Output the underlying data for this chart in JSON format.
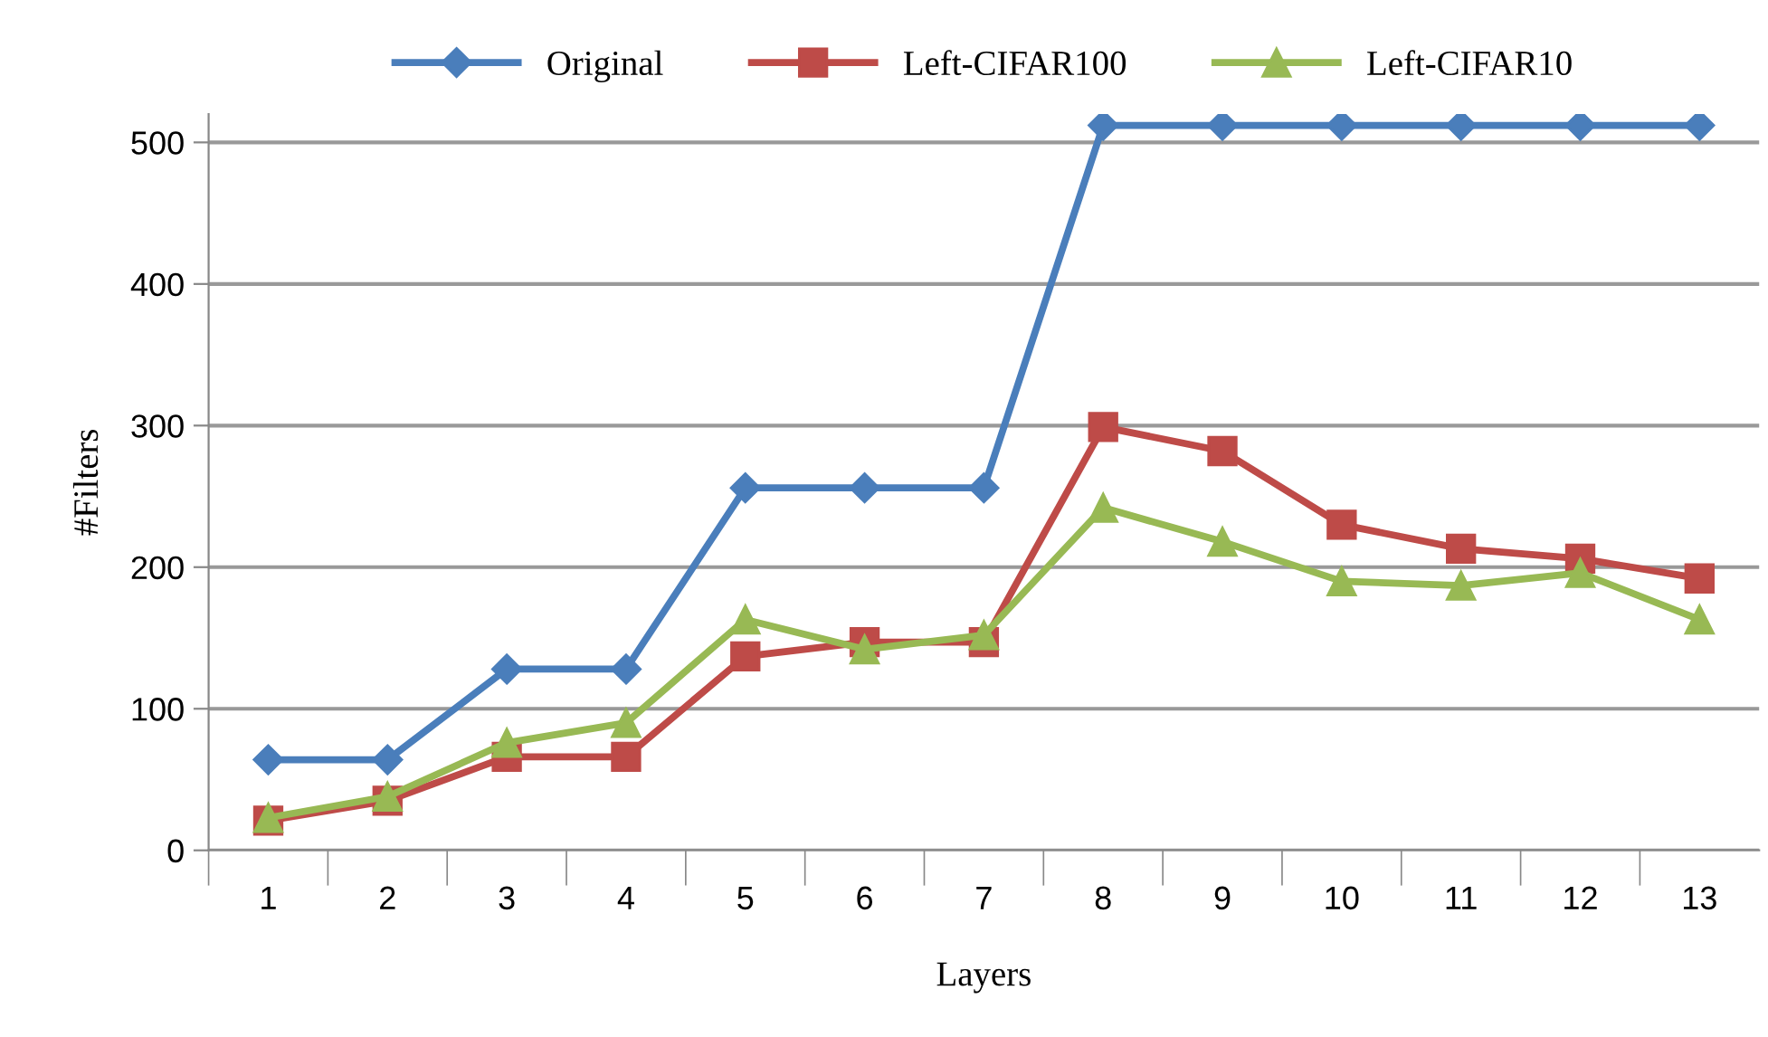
{
  "chart_data": {
    "type": "line",
    "xlabel": "Layers",
    "ylabel": "#Filters",
    "categories": [
      "1",
      "2",
      "3",
      "4",
      "5",
      "6",
      "7",
      "8",
      "9",
      "10",
      "11",
      "12",
      "13"
    ],
    "series": [
      {
        "name": "Original",
        "color": "#4a7ebb",
        "marker": "diamond",
        "values": [
          64,
          64,
          128,
          128,
          256,
          256,
          256,
          512,
          512,
          512,
          512,
          512,
          512
        ]
      },
      {
        "name": "Left-CIFAR100",
        "color": "#be4b48",
        "marker": "square",
        "values": [
          21,
          35,
          66,
          66,
          137,
          147,
          147,
          299,
          282,
          230,
          213,
          206,
          192
        ]
      },
      {
        "name": "Left-CIFAR10",
        "color": "#98b954",
        "marker": "triangle",
        "values": [
          23,
          38,
          76,
          90,
          163,
          142,
          152,
          242,
          218,
          190,
          187,
          196,
          163
        ]
      }
    ],
    "ylim": [
      0,
      520
    ],
    "yticks": [
      0,
      100,
      200,
      300,
      400,
      500
    ],
    "grid": "y",
    "legend": "top"
  }
}
